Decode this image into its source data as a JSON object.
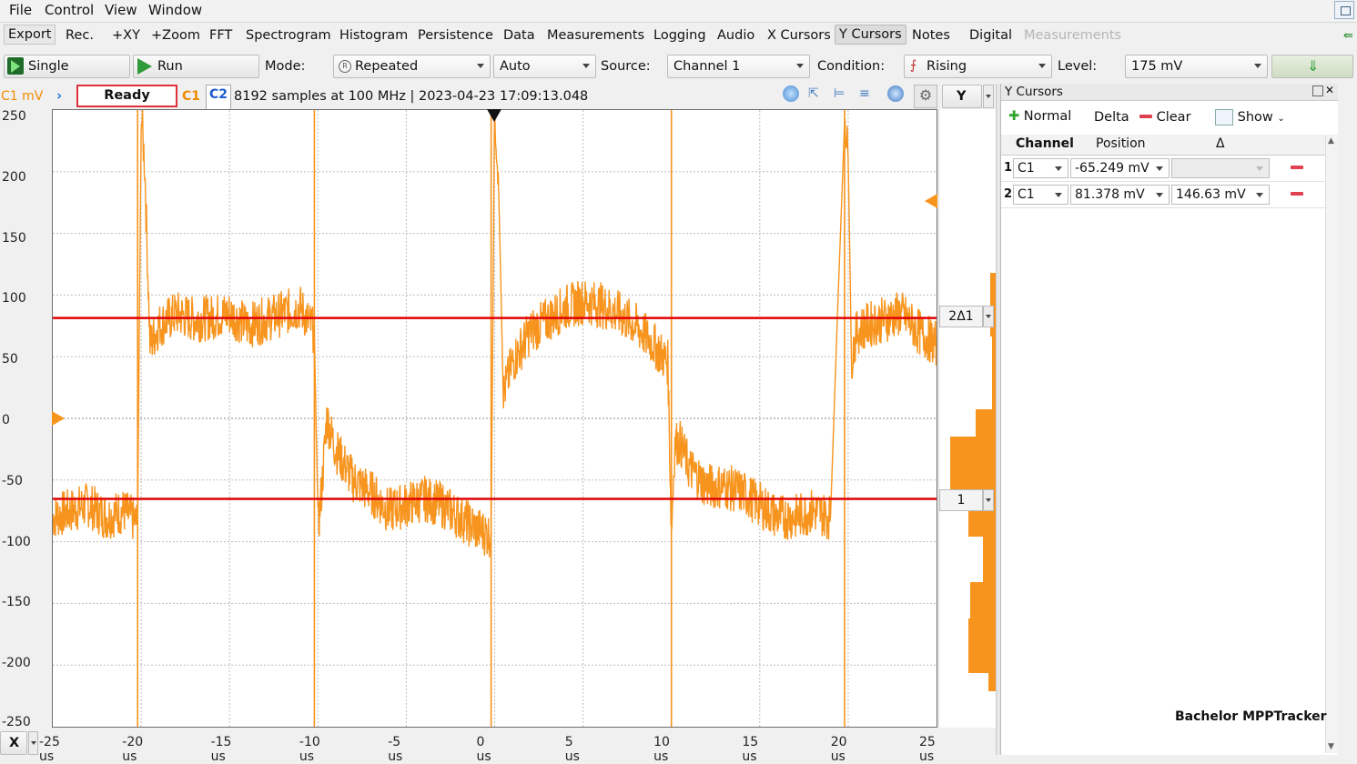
{
  "menu": [
    "File",
    "Control",
    "View",
    "Window"
  ],
  "toolbar": {
    "items": [
      "Export",
      "Rec.",
      "+XY",
      "+Zoom",
      "FFT",
      "Spectrogram",
      "Histogram",
      "Persistence",
      "Data",
      "Measurements",
      "Logging",
      "Audio",
      "X Cursors",
      "Y Cursors",
      "Notes",
      "Digital",
      "Measurements"
    ],
    "active": "Y Cursors"
  },
  "controls": {
    "single_label": "Single",
    "run_label": "Run",
    "mode_label": "Mode:",
    "mode_value": "Repeated",
    "auto_value": "Auto",
    "source_label": "Source:",
    "source_value": "Channel 1",
    "condition_label": "Condition:",
    "condition_value": "Rising",
    "level_label": "Level:",
    "level_value": "175 mV"
  },
  "info": {
    "unit_label": "C1 mV",
    "status": "Ready",
    "ch1": "C1",
    "ch2": "C2",
    "acq_text": "8192 samples at 100 MHz | 2023-04-23 17:09:13.048",
    "y_button": "Y",
    "x_button": "X"
  },
  "plot": {
    "y_ticks": [
      "250",
      "200",
      "150",
      "100",
      "50",
      "0",
      "-50",
      "-100",
      "-150",
      "-200",
      "-250"
    ],
    "x_ticks": [
      "-25 us",
      "-20 us",
      "-15 us",
      "-10 us",
      "-5 us",
      "0 us",
      "5 us",
      "10 us",
      "15 us",
      "20 us",
      "25 us"
    ],
    "trace_color": "#f7941d",
    "cursor_color": "#e00000",
    "cursor1_tag": "1",
    "cursor2_tag": "2Δ1"
  },
  "chart_data": {
    "type": "line",
    "xlabel": "",
    "ylabel": "C1 mV",
    "xlim": [
      -25,
      25
    ],
    "ylim": [
      -250,
      250
    ],
    "series": [
      {
        "x": [
          -25,
          -24,
          -23,
          -22,
          -21,
          -20.2,
          -20,
          -19.8,
          -19.5,
          -19,
          -18,
          -17,
          -16,
          -15,
          -14,
          -13,
          -12,
          -11,
          -10.2,
          -10,
          -9.8,
          -9.5,
          -9,
          -8,
          -7,
          -6,
          -5,
          -4,
          -3,
          -2,
          -1,
          -0.2,
          0,
          0.2,
          0.5,
          1,
          2,
          3,
          4,
          5,
          6,
          7,
          8,
          9,
          9.8,
          10,
          10.2,
          10.5,
          11,
          12,
          13,
          14,
          15,
          16,
          17,
          18,
          19,
          19.8,
          20,
          20.2,
          20.5,
          21,
          22,
          23,
          24,
          25
        ],
        "y": [
          -80,
          -75,
          -70,
          -80,
          -75,
          -85,
          250,
          205,
          60,
          75,
          85,
          80,
          82,
          85,
          75,
          80,
          85,
          90,
          70,
          -90,
          -60,
          0,
          -25,
          -50,
          -60,
          -75,
          -70,
          -65,
          -70,
          -80,
          -90,
          -95,
          250,
          200,
          20,
          45,
          70,
          80,
          90,
          95,
          92,
          85,
          75,
          60,
          45,
          -90,
          -20,
          -20,
          -40,
          -55,
          -55,
          -60,
          -70,
          -80,
          -80,
          -75,
          -80,
          250,
          210,
          50,
          70,
          75,
          80,
          85,
          70,
          60
        ]
      }
    ],
    "cursors_mV": [
      -65.249,
      81.378
    ]
  },
  "panel": {
    "title": "Y Cursors",
    "normal_label": "Normal",
    "delta_label": "Delta",
    "clear_label": "Clear",
    "show_label": "Show",
    "headers": [
      "Channel",
      "Position",
      "Δ"
    ],
    "rows": [
      {
        "index": "1",
        "channel": "C1",
        "position": "-65.249 mV",
        "delta": ""
      },
      {
        "index": "2",
        "channel": "C1",
        "position": "81.378 mV",
        "delta": "146.63 mV"
      }
    ],
    "footer": "Bachelor MPPTracker"
  }
}
